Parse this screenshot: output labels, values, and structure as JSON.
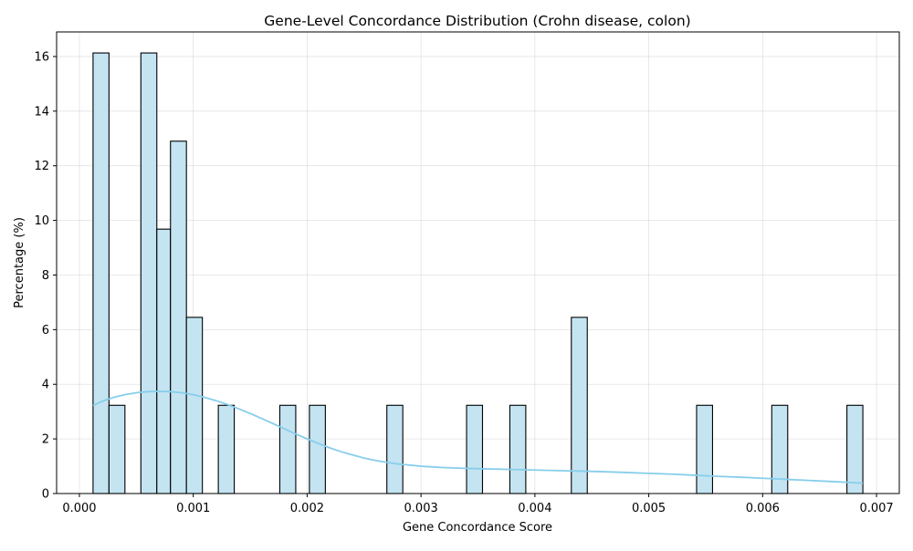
{
  "chart_data": {
    "type": "histogram",
    "title": "Gene-Level Concordance Distribution (Crohn disease, colon)",
    "xlabel": "Gene Concordance Score",
    "ylabel": "Percentage (%)",
    "xlim": [
      -0.0002,
      0.0072
    ],
    "ylim": [
      0,
      16.9
    ],
    "x_ticks": [
      0.0,
      0.001,
      0.002,
      0.003,
      0.004,
      0.005,
      0.006,
      0.007
    ],
    "x_tick_labels": [
      "0.000",
      "0.001",
      "0.002",
      "0.003",
      "0.004",
      "0.005",
      "0.006",
      "0.007"
    ],
    "y_ticks": [
      0,
      2,
      4,
      6,
      8,
      10,
      12,
      14,
      16
    ],
    "y_tick_labels": [
      "0",
      "2",
      "4",
      "6",
      "8",
      "10",
      "12",
      "14",
      "16"
    ],
    "grid": true,
    "bar_fill": "#c4e4f2",
    "bar_edge": "#000000",
    "kde_color": "#87ceeb",
    "bins": [
      {
        "x0": 0.00012,
        "x1": 0.00026,
        "value": 16.13
      },
      {
        "x0": 0.00026,
        "x1": 0.0004,
        "value": 3.23
      },
      {
        "x0": 0.00054,
        "x1": 0.00068,
        "value": 16.13
      },
      {
        "x0": 0.00068,
        "x1": 0.0008,
        "value": 9.68
      },
      {
        "x0": 0.0008,
        "x1": 0.00094,
        "value": 12.9
      },
      {
        "x0": 0.00094,
        "x1": 0.00108,
        "value": 6.45
      },
      {
        "x0": 0.00122,
        "x1": 0.00136,
        "value": 3.23
      },
      {
        "x0": 0.00176,
        "x1": 0.0019,
        "value": 3.23
      },
      {
        "x0": 0.00202,
        "x1": 0.00216,
        "value": 3.23
      },
      {
        "x0": 0.0027,
        "x1": 0.00284,
        "value": 3.23
      },
      {
        "x0": 0.0034,
        "x1": 0.00354,
        "value": 3.23
      },
      {
        "x0": 0.00378,
        "x1": 0.00392,
        "value": 3.23
      },
      {
        "x0": 0.00432,
        "x1": 0.00446,
        "value": 6.45
      },
      {
        "x0": 0.00542,
        "x1": 0.00556,
        "value": 3.23
      },
      {
        "x0": 0.00608,
        "x1": 0.00622,
        "value": 3.23
      },
      {
        "x0": 0.00674,
        "x1": 0.00688,
        "value": 3.23
      }
    ],
    "kde": {
      "x": [
        0.00012,
        0.0002,
        0.0003,
        0.0004,
        0.0005,
        0.0006,
        0.0007,
        0.0008,
        0.0009,
        0.001,
        0.0011,
        0.0012,
        0.0013,
        0.0014,
        0.0015,
        0.0016,
        0.0017,
        0.0018,
        0.0019,
        0.002,
        0.0021,
        0.0022,
        0.0023,
        0.0024,
        0.0025,
        0.0026,
        0.0027,
        0.0028,
        0.003,
        0.0032,
        0.0034,
        0.0036,
        0.0038,
        0.004,
        0.0042,
        0.0044,
        0.0046,
        0.0048,
        0.005,
        0.0052,
        0.0054,
        0.0056,
        0.0058,
        0.006,
        0.0062,
        0.0064,
        0.0066,
        0.00688
      ],
      "y": [
        3.22,
        3.38,
        3.52,
        3.62,
        3.69,
        3.73,
        3.74,
        3.73,
        3.69,
        3.62,
        3.52,
        3.4,
        3.26,
        3.1,
        2.93,
        2.75,
        2.56,
        2.37,
        2.18,
        2.0,
        1.83,
        1.67,
        1.53,
        1.41,
        1.3,
        1.21,
        1.14,
        1.08,
        1.0,
        0.95,
        0.92,
        0.9,
        0.88,
        0.86,
        0.84,
        0.82,
        0.8,
        0.77,
        0.74,
        0.71,
        0.67,
        0.63,
        0.6,
        0.56,
        0.52,
        0.48,
        0.44,
        0.38
      ]
    }
  }
}
